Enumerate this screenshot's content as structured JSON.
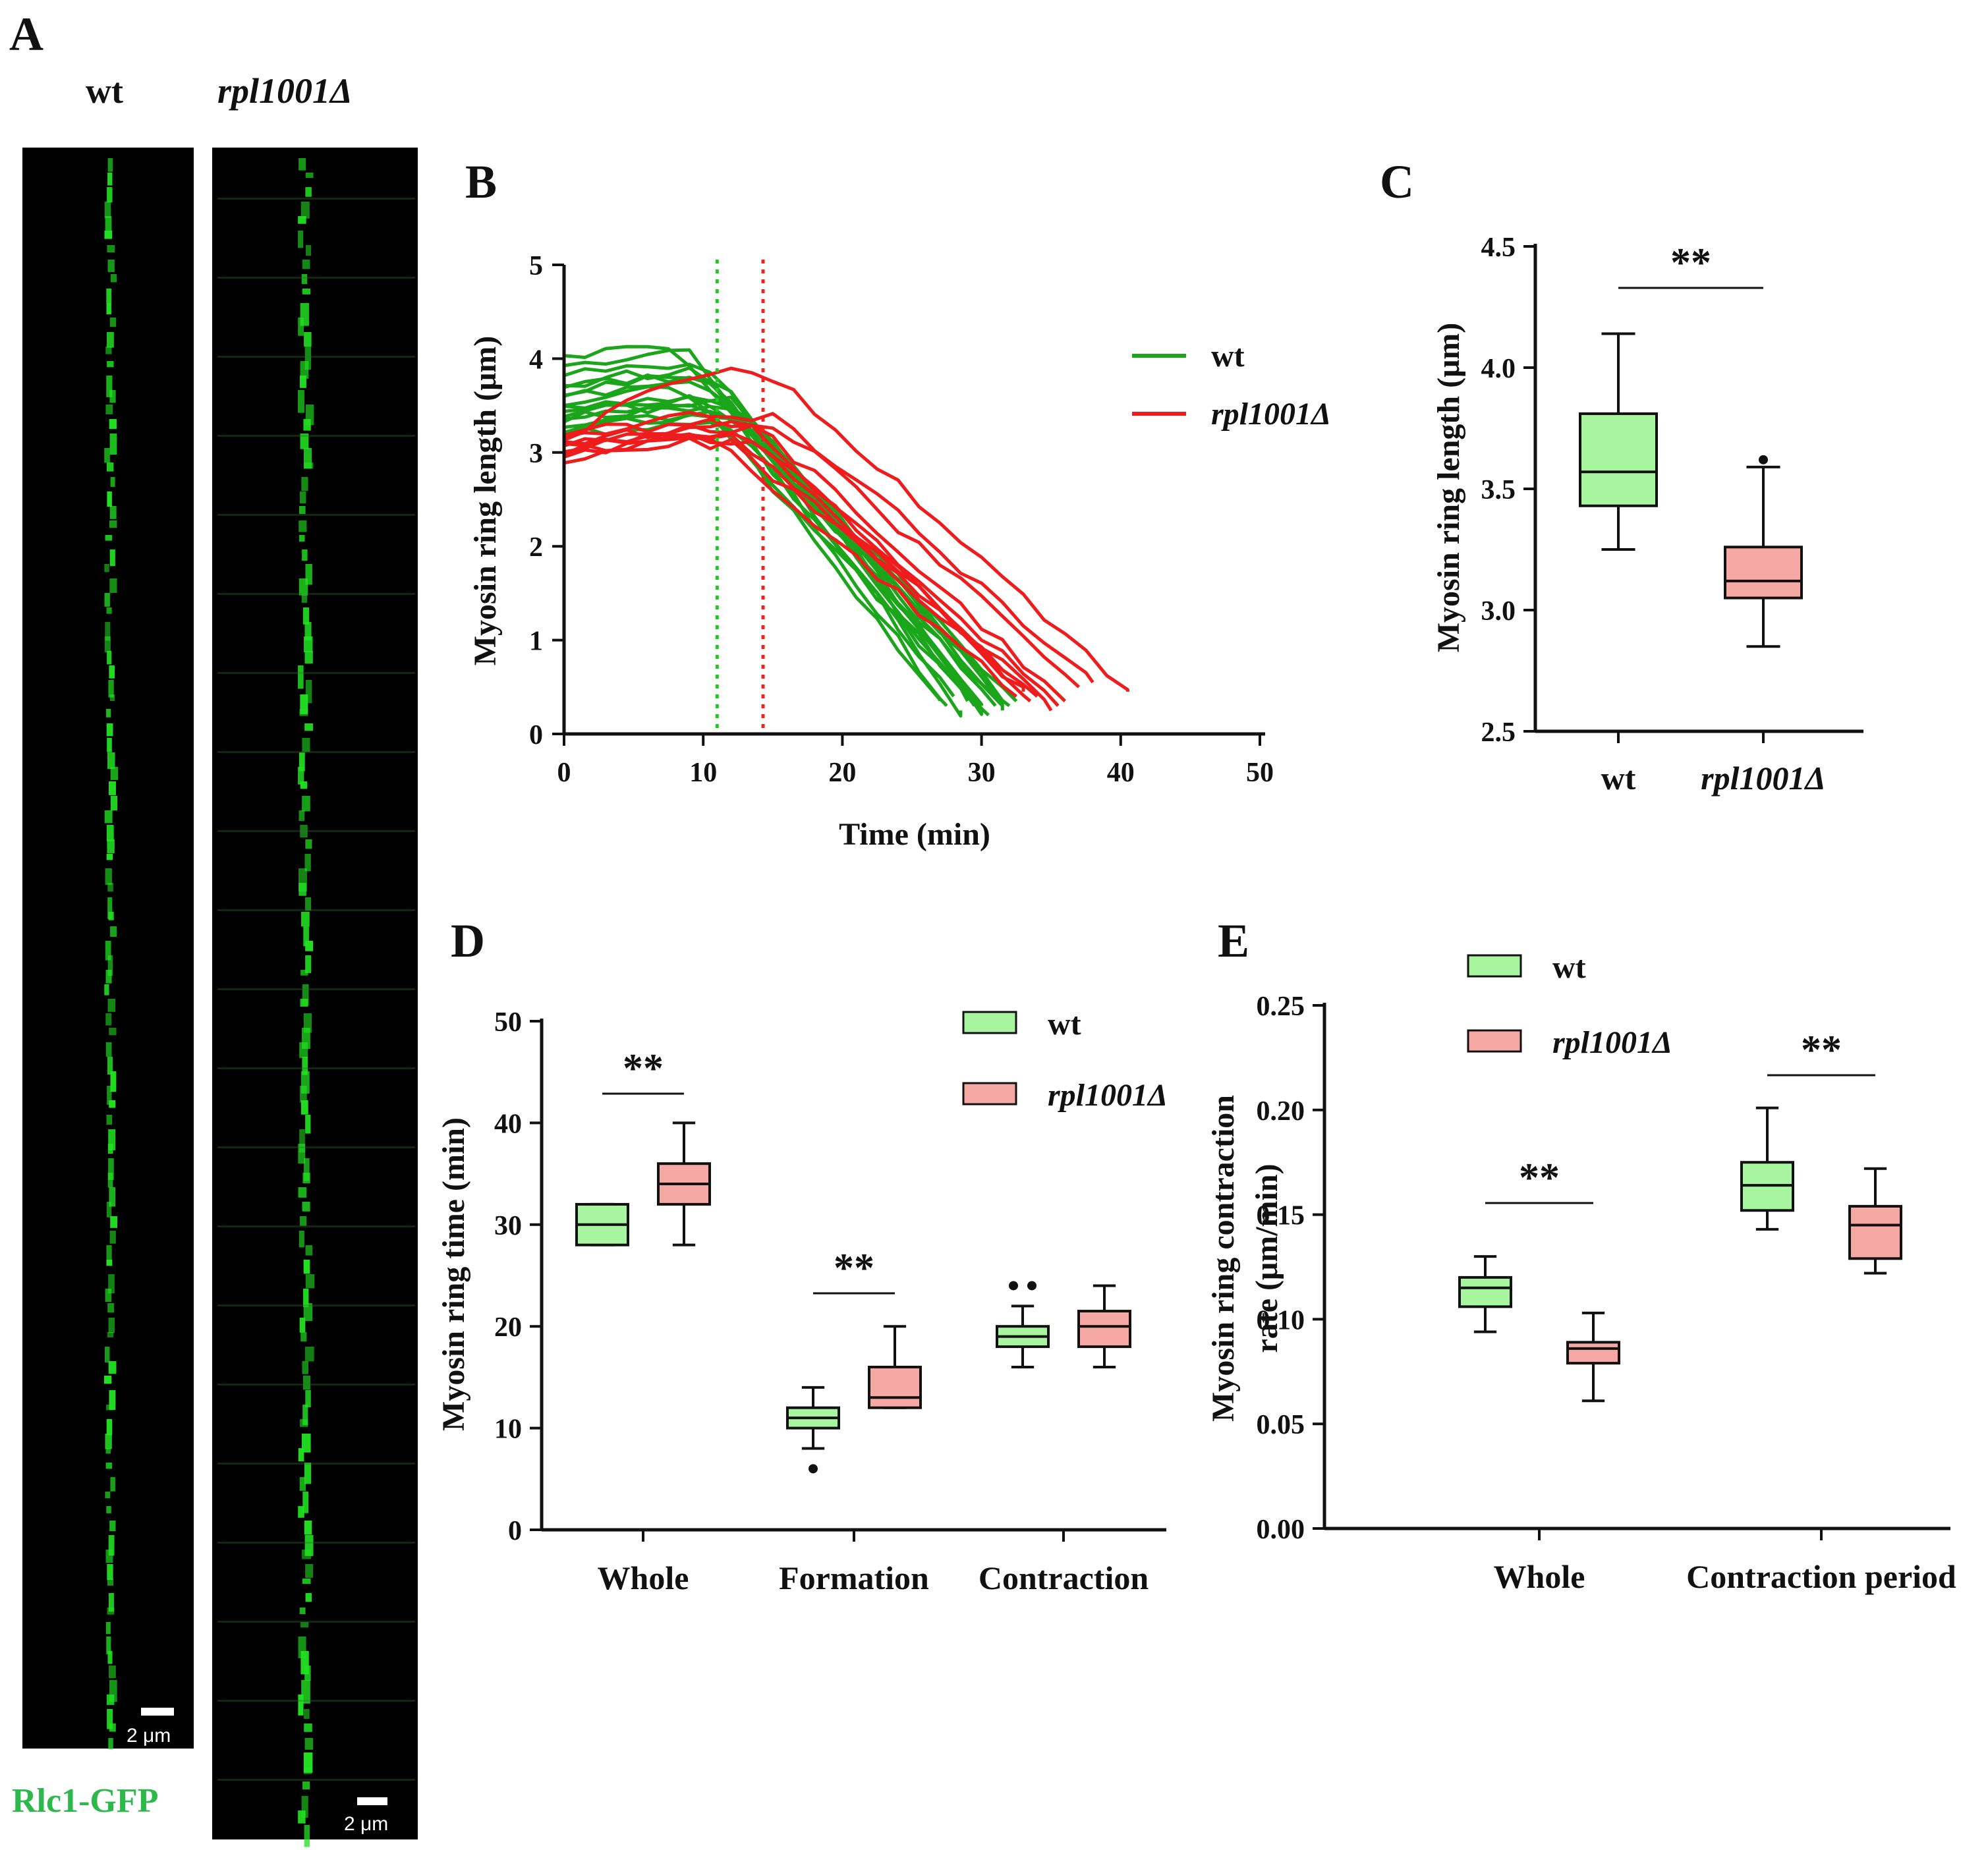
{
  "figure": {
    "panel_labels": [
      "A",
      "B",
      "C",
      "D",
      "E"
    ],
    "strains": {
      "wt": "wt",
      "mutant": "rpl1001Δ"
    },
    "colors": {
      "wt_line": "#1aa51a",
      "mut_line": "#ee1c1c",
      "wt_box": "#a8f5a0",
      "mut_box": "#f6a8a4",
      "wt_dotted": "#22c722",
      "mut_dotted": "#ee2222",
      "gfp": "#22e022",
      "gfp_label": "#2db84b"
    }
  },
  "panelA": {
    "label": "A",
    "col_wt": "wt",
    "col_mut": "rpl1001Δ",
    "scale_wt": "2 μm",
    "scale_mut": "2 μm",
    "marker": "Rlc1-GFP"
  },
  "chart_data": [
    {
      "panel": "B",
      "type": "line",
      "title": "",
      "xlabel": "Time (min)",
      "ylabel": "Myosin ring length (μm)",
      "xlim": [
        0,
        50
      ],
      "ylim": [
        0,
        5
      ],
      "xticks": [
        "0",
        "10",
        "20",
        "30",
        "40",
        "50"
      ],
      "yticks": [
        "0",
        "1",
        "2",
        "3",
        "4",
        "5"
      ],
      "legend": [
        {
          "name": "wt",
          "color": "#1aa51a"
        },
        {
          "name": "rpl1001Δ",
          "color": "#ee1c1c"
        }
      ],
      "vlines": [
        {
          "x": 11,
          "series": "wt"
        },
        {
          "x": 14.3,
          "series": "rpl1001Δ"
        }
      ],
      "series": [
        {
          "name": "wt",
          "color": "#1aa51a",
          "curves": [
            {
              "start": 4.0,
              "peak": 4.1,
              "plateau_end": 8,
              "end_x": 27.5,
              "end_y": 0.3
            },
            {
              "start": 3.9,
              "peak": 4.05,
              "plateau_end": 9,
              "end_x": 28.5,
              "end_y": 0.25
            },
            {
              "start": 3.8,
              "peak": 3.95,
              "plateau_end": 10,
              "end_x": 29,
              "end_y": 0.35
            },
            {
              "start": 3.7,
              "peak": 3.85,
              "plateau_end": 10,
              "end_x": 29.5,
              "end_y": 0.3
            },
            {
              "start": 3.6,
              "peak": 3.8,
              "plateau_end": 11,
              "end_x": 30,
              "end_y": 0.25
            },
            {
              "start": 3.6,
              "peak": 3.7,
              "plateau_end": 11,
              "end_x": 30.5,
              "end_y": 0.2
            },
            {
              "start": 3.5,
              "peak": 3.6,
              "plateau_end": 12,
              "end_x": 31,
              "end_y": 0.3
            },
            {
              "start": 3.45,
              "peak": 3.55,
              "plateau_end": 11,
              "end_x": 31.5,
              "end_y": 0.35
            },
            {
              "start": 3.4,
              "peak": 3.5,
              "plateau_end": 12,
              "end_x": 32,
              "end_y": 0.3
            },
            {
              "start": 3.35,
              "peak": 3.45,
              "plateau_end": 10,
              "end_x": 29,
              "end_y": 0.4
            },
            {
              "start": 3.3,
              "peak": 3.4,
              "plateau_end": 12,
              "end_x": 32.5,
              "end_y": 0.35
            },
            {
              "start": 3.25,
              "peak": 3.35,
              "plateau_end": 13,
              "end_x": 31,
              "end_y": 0.4
            },
            {
              "start": 3.2,
              "peak": 3.3,
              "plateau_end": 12,
              "end_x": 28,
              "end_y": 0.4
            },
            {
              "start": 3.55,
              "peak": 3.65,
              "plateau_end": 9,
              "end_x": 27,
              "end_y": 0.35
            },
            {
              "start": 3.75,
              "peak": 3.8,
              "plateau_end": 10,
              "end_x": 30,
              "end_y": 0.3
            },
            {
              "start": 3.3,
              "peak": 3.5,
              "plateau_end": 11,
              "end_x": 31.5,
              "end_y": 0.25
            }
          ]
        },
        {
          "name": "rpl1001Δ",
          "color": "#ee1c1c",
          "curves": [
            {
              "start": 3.1,
              "peak": 3.85,
              "plateau_end": 14.5,
              "end_x": 40.5,
              "end_y": 0.45
            },
            {
              "start": 3.15,
              "peak": 3.4,
              "plateau_end": 15,
              "end_x": 38,
              "end_y": 0.55
            },
            {
              "start": 3.05,
              "peak": 3.3,
              "plateau_end": 15,
              "end_x": 37,
              "end_y": 0.5
            },
            {
              "start": 3.1,
              "peak": 3.25,
              "plateau_end": 14,
              "end_x": 36,
              "end_y": 0.35
            },
            {
              "start": 3.0,
              "peak": 3.2,
              "plateau_end": 13,
              "end_x": 35.5,
              "end_y": 0.3
            },
            {
              "start": 2.95,
              "peak": 3.15,
              "plateau_end": 13,
              "end_x": 35,
              "end_y": 0.25
            },
            {
              "start": 3.1,
              "peak": 3.2,
              "plateau_end": 12,
              "end_x": 34,
              "end_y": 0.4
            },
            {
              "start": 2.9,
              "peak": 3.1,
              "plateau_end": 12,
              "end_x": 33,
              "end_y": 0.45
            },
            {
              "start": 3.2,
              "peak": 3.3,
              "plateau_end": 13,
              "end_x": 33.5,
              "end_y": 0.35
            },
            {
              "start": 3.0,
              "peak": 3.1,
              "plateau_end": 11,
              "end_x": 32.5,
              "end_y": 0.4
            }
          ]
        }
      ]
    },
    {
      "panel": "C",
      "type": "box",
      "ylabel": "Myosin ring length (μm)",
      "ylim": [
        2.5,
        4.5
      ],
      "yticks": [
        "2.5",
        "3.0",
        "3.5",
        "4.0",
        "4.5"
      ],
      "categories": [
        "wt",
        "rpl1001Δ"
      ],
      "boxes": [
        {
          "name": "wt",
          "min": 3.25,
          "q1": 3.43,
          "median": 3.57,
          "q3": 3.81,
          "max": 4.14,
          "outliers": []
        },
        {
          "name": "rpl1001Δ",
          "min": 2.85,
          "q1": 3.05,
          "median": 3.12,
          "q3": 3.26,
          "max": 3.59,
          "outliers": [
            3.62
          ]
        }
      ],
      "significance": [
        {
          "between": [
            "wt",
            "rpl1001Δ"
          ],
          "label": "**"
        }
      ]
    },
    {
      "panel": "D",
      "type": "box",
      "ylabel": "Myosin ring time (min)",
      "ylim": [
        0,
        50
      ],
      "yticks": [
        "0",
        "10",
        "20",
        "30",
        "40",
        "50"
      ],
      "categories": [
        "Whole",
        "Formation",
        "Contraction"
      ],
      "legend": [
        "wt",
        "rpl1001Δ"
      ],
      "series": [
        {
          "name": "wt",
          "boxes": [
            {
              "min": 28,
              "q1": 28,
              "median": 30,
              "q3": 32,
              "max": 32,
              "outliers": []
            },
            {
              "min": 8,
              "q1": 10,
              "median": 11,
              "q3": 12,
              "max": 14,
              "outliers": [
                6
              ]
            },
            {
              "min": 16,
              "q1": 18,
              "median": 19,
              "q3": 20,
              "max": 22,
              "outliers": [
                24,
                24
              ]
            }
          ]
        },
        {
          "name": "rpl1001Δ",
          "boxes": [
            {
              "min": 28,
              "q1": 32,
              "median": 34,
              "q3": 36,
              "max": 40,
              "outliers": []
            },
            {
              "min": 12,
              "q1": 12,
              "median": 13,
              "q3": 16,
              "max": 20,
              "outliers": []
            },
            {
              "min": 16,
              "q1": 18,
              "median": 20,
              "q3": 21.5,
              "max": 24,
              "outliers": []
            }
          ]
        }
      ],
      "significance": [
        {
          "category": "Whole",
          "label": "**"
        },
        {
          "category": "Formation",
          "label": "**"
        }
      ]
    },
    {
      "panel": "E",
      "type": "box",
      "ylabel": "Myosin ring contraction rate (μm/min)",
      "ylim": [
        0,
        0.25
      ],
      "yticks": [
        "0.00",
        "0.05",
        "0.10",
        "0.15",
        "0.20",
        "0.25"
      ],
      "categories": [
        "Whole",
        "Contraction period"
      ],
      "legend": [
        "wt",
        "rpl1001Δ"
      ],
      "series": [
        {
          "name": "wt",
          "boxes": [
            {
              "min": 0.094,
              "q1": 0.106,
              "median": 0.115,
              "q3": 0.12,
              "max": 0.13,
              "outliers": []
            },
            {
              "min": 0.143,
              "q1": 0.152,
              "median": 0.164,
              "q3": 0.175,
              "max": 0.201,
              "outliers": []
            }
          ]
        },
        {
          "name": "rpl1001Δ",
          "boxes": [
            {
              "min": 0.061,
              "q1": 0.079,
              "median": 0.086,
              "q3": 0.089,
              "max": 0.103,
              "outliers": []
            },
            {
              "min": 0.122,
              "q1": 0.129,
              "median": 0.145,
              "q3": 0.154,
              "max": 0.172,
              "outliers": []
            }
          ]
        }
      ],
      "significance": [
        {
          "category": "Whole",
          "label": "**"
        },
        {
          "category": "Contraction period",
          "label": "**"
        }
      ]
    }
  ]
}
